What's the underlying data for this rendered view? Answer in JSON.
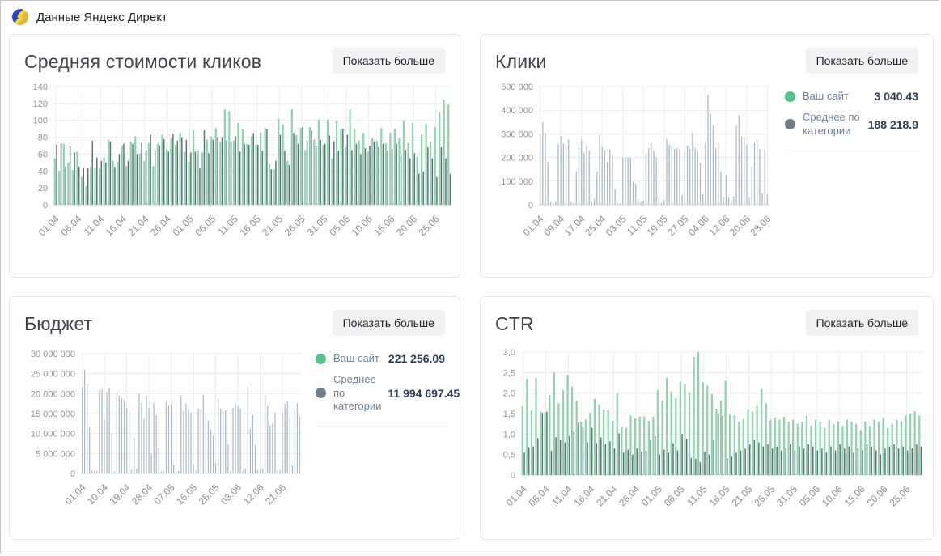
{
  "header": {
    "title": "Данные Яндекс Директ",
    "logo_icon": "yandex-direct-logo"
  },
  "show_more_label": "Показать больше",
  "colors": {
    "green": "#8dd3ae",
    "gray_dark": "#5f6d79",
    "gray_light": "#aebcc6",
    "legend_green_dot": "#55c388",
    "legend_gray_dot": "#6d7d8b",
    "grid": "#e9ebed",
    "axis_text": "#8b939c"
  },
  "chart_data": [
    {
      "type": "bar",
      "title": "Средняя стоимости кликов",
      "date_range": "01.04 – 28.06",
      "n_days": 89,
      "y_max": 140,
      "y_ticks": [
        "140",
        "120",
        "100",
        "80",
        "60",
        "40",
        "20",
        "0"
      ],
      "x_tick_labels": [
        "01.04",
        "06.04",
        "11.04",
        "16.04",
        "21.04",
        "26.04",
        "01.05",
        "06.05",
        "11.05",
        "16.05",
        "21.05",
        "26.05",
        "31.05",
        "05.06",
        "10.06",
        "15.06",
        "20.06",
        "25.06"
      ],
      "x_tick_positions": [
        0,
        5,
        10,
        15,
        20,
        25,
        30,
        35,
        40,
        45,
        50,
        55,
        60,
        65,
        70,
        75,
        80,
        85
      ],
      "series": [
        {
          "name": "Ваш сайт",
          "color_key": "green",
          "values": [
            55,
            40,
            72,
            50,
            41,
            63,
            33,
            22,
            45,
            44,
            43,
            56,
            77,
            52,
            51,
            70,
            46,
            75,
            81,
            61,
            52,
            73,
            46,
            72,
            83,
            66,
            79,
            71,
            85,
            63,
            51,
            88,
            64,
            62,
            77,
            81,
            91,
            75,
            113,
            111,
            76,
            97,
            89,
            72,
            81,
            71,
            86,
            91,
            48,
            42,
            102,
            95,
            52,
            113,
            83,
            91,
            65,
            92,
            77,
            101,
            71,
            101,
            55,
            100,
            89,
            68,
            113,
            90,
            76,
            85,
            63,
            79,
            76,
            91,
            73,
            85,
            90,
            79,
            100,
            73,
            97,
            57,
            83,
            96,
            75,
            92,
            110,
            124,
            119
          ]
        },
        {
          "name": "Среднее по категории",
          "color_key": "gray_dark",
          "values": [
            71,
            73,
            45,
            70,
            62,
            45,
            44,
            43,
            76,
            56,
            52,
            50,
            75,
            45,
            60,
            72,
            52,
            72,
            60,
            73,
            65,
            83,
            65,
            70,
            78,
            63,
            84,
            76,
            80,
            77,
            62,
            63,
            43,
            88,
            61,
            77,
            80,
            80,
            76,
            74,
            81,
            63,
            72,
            71,
            85,
            71,
            64,
            89,
            42,
            52,
            83,
            64,
            47,
            85,
            72,
            92,
            76,
            88,
            70,
            77,
            72,
            82,
            75,
            64,
            90,
            83,
            65,
            72,
            60,
            67,
            70,
            75,
            68,
            72,
            64,
            66,
            72,
            58,
            65,
            55,
            61,
            37,
            39,
            68,
            55,
            33,
            68,
            55,
            37
          ]
        }
      ]
    },
    {
      "type": "bar",
      "title": "Клики",
      "date_range": "01.04 – 28.06",
      "n_days": 89,
      "y_max": 500000,
      "y_ticks": [
        "500 000",
        "400 000",
        "300 000",
        "200 000",
        "100 000",
        "0"
      ],
      "x_tick_labels": [
        "01.04",
        "09.04",
        "17.04",
        "25.04",
        "03.05",
        "11.05",
        "19.05",
        "27.05",
        "04.06",
        "12.06",
        "20.06",
        "28.06"
      ],
      "x_tick_positions": [
        0,
        8,
        16,
        24,
        32,
        40,
        48,
        56,
        64,
        72,
        80,
        88
      ],
      "legend": [
        {
          "label": "Ваш сайт",
          "value": "3 040.43",
          "color": "green"
        },
        {
          "label": "Среднее по категории",
          "value": "188 218.9",
          "color": "gray"
        }
      ],
      "series": [
        {
          "name": "Среднее по категории",
          "color_key": "gray_light",
          "values": [
            300000,
            350000,
            305000,
            180000,
            12000,
            8000,
            15000,
            255000,
            290000,
            260000,
            255000,
            275000,
            15000,
            8000,
            140000,
            240000,
            275000,
            220000,
            250000,
            230000,
            12000,
            25000,
            140000,
            295000,
            245000,
            230000,
            180000,
            235000,
            210000,
            65000,
            8000,
            5000,
            200000,
            200000,
            200000,
            200000,
            95000,
            90000,
            20000,
            12000,
            18000,
            215000,
            240000,
            260000,
            230000,
            200000,
            30000,
            8000,
            20000,
            280000,
            255000,
            250000,
            235000,
            240000,
            235000,
            40000,
            225000,
            250000,
            235000,
            305000,
            240000,
            225000,
            175000,
            45000,
            260000,
            465000,
            385000,
            335000,
            240000,
            260000,
            140000,
            30000,
            125000,
            30000,
            20000,
            35000,
            335000,
            380000,
            290000,
            285000,
            255000,
            30000,
            160000,
            260000,
            280000,
            235000,
            50000,
            235000,
            45000
          ]
        }
      ]
    },
    {
      "type": "bar",
      "title": "Бюджет",
      "date_range": "01.04 – 28.06",
      "n_days": 89,
      "y_max": 30000000,
      "y_ticks": [
        "30 000 000",
        "25 000 000",
        "20 000 000",
        "15 000 000",
        "10 000 000",
        "5 000 000",
        "0"
      ],
      "x_tick_labels": [
        "01.04",
        "10.04",
        "19.04",
        "28.04",
        "07.05",
        "16.05",
        "25.05",
        "03.06",
        "12.06",
        "21.06"
      ],
      "x_tick_positions": [
        0,
        9,
        18,
        27,
        36,
        45,
        54,
        63,
        72,
        81
      ],
      "legend": [
        {
          "label": "Ваш сайт",
          "value": "221 256.09",
          "color": "green"
        },
        {
          "label": "Среднее по категории",
          "value": "11 994 697.45",
          "color": "gray"
        }
      ],
      "series": [
        {
          "name": "Среднее по категории",
          "color_key": "gray_light",
          "values": [
            21500000,
            26000000,
            22500000,
            11500000,
            800000,
            600000,
            700000,
            20800000,
            21000000,
            13500000,
            20500000,
            21500000,
            10000000,
            500000,
            20000000,
            19500000,
            18700000,
            18500000,
            16500000,
            15300000,
            900000,
            9000000,
            1200000,
            20000000,
            17700000,
            13800000,
            19500000,
            16500000,
            4800000,
            17600000,
            14600000,
            6400000,
            500000,
            600000,
            17900000,
            17000000,
            17300000,
            2200000,
            500000,
            600000,
            19500000,
            15500000,
            17500000,
            16200000,
            15300000,
            2300000,
            700000,
            16200000,
            16100000,
            19600000,
            14800000,
            13300000,
            11000000,
            9500000,
            2600000,
            18700000,
            16300000,
            15600000,
            15900000,
            7400000,
            600000,
            16300000,
            17400000,
            16800000,
            16300000,
            700000,
            1200000,
            21700000,
            11200000,
            14600000,
            7200000,
            800000,
            1000000,
            1200000,
            19700000,
            16900000,
            12100000,
            12500000,
            15300000,
            800000,
            900000,
            15200000,
            17500000,
            18000000,
            14200000,
            2000000,
            16000000,
            17600000,
            14200000
          ]
        }
      ]
    },
    {
      "type": "bar",
      "title": "CTR",
      "date_range": "01.04 – 28.06",
      "n_days": 89,
      "y_max": 3,
      "y_ticks": [
        "3,0",
        "2,5",
        "2,0",
        "1,5",
        "1,0",
        "0,5",
        "0"
      ],
      "x_tick_labels": [
        "01.04",
        "06.04",
        "11.04",
        "16.04",
        "21.04",
        "26.04",
        "01.05",
        "06.05",
        "11.05",
        "16.05",
        "21.05",
        "26.05",
        "31.05",
        "05.06",
        "10.06",
        "15.06",
        "20.06",
        "25.06"
      ],
      "x_tick_positions": [
        0,
        5,
        10,
        15,
        20,
        25,
        30,
        35,
        40,
        45,
        50,
        55,
        60,
        65,
        70,
        75,
        80,
        85
      ],
      "series": [
        {
          "name": "Ваш сайт",
          "color_key": "green",
          "values": [
            1.68,
            2.35,
            1.58,
            2.37,
            1.55,
            1.53,
            1.95,
            2.5,
            1.75,
            2.07,
            2.45,
            2.16,
            1.82,
            1.3,
            1.35,
            1.52,
            1.86,
            1.72,
            1.6,
            1.58,
            1.32,
            2.0,
            1.18,
            1.15,
            1.45,
            1.38,
            1.43,
            1.43,
            1.32,
            1.42,
            2.07,
            1.82,
            2.37,
            2.04,
            1.88,
            2.28,
            2.23,
            2.03,
            2.88,
            3.0,
            2.26,
            2.18,
            1.98,
            1.62,
            1.82,
            2.3,
            1.47,
            1.46,
            1.3,
            1.37,
            1.6,
            1.55,
            1.68,
            2.1,
            1.75,
            1.35,
            1.4,
            1.35,
            1.42,
            1.3,
            1.35,
            1.25,
            1.3,
            1.45,
            1.2,
            1.35,
            1.3,
            1.15,
            1.35,
            1.25,
            1.3,
            1.2,
            1.35,
            1.3,
            1.25,
            1.1,
            1.3,
            1.2,
            1.35,
            1.3,
            1.4,
            1.15,
            1.25,
            1.35,
            1.3,
            1.45,
            1.5,
            1.55,
            1.45
          ]
        },
        {
          "name": "Среднее по категории",
          "color_key": "gray_dark",
          "values": [
            0.55,
            0.68,
            0.7,
            0.9,
            1.52,
            1.55,
            0.6,
            0.92,
            0.85,
            0.8,
            0.95,
            1.05,
            1.28,
            1.16,
            0.8,
            1.15,
            0.78,
            0.92,
            0.75,
            0.82,
            0.65,
            1.02,
            0.55,
            0.62,
            0.5,
            0.65,
            0.57,
            0.6,
            0.85,
            0.95,
            0.5,
            0.62,
            0.55,
            0.78,
            0.6,
            1.0,
            0.88,
            0.42,
            0.4,
            0.32,
            0.57,
            0.5,
            0.85,
            1.5,
            1.45,
            0.4,
            0.45,
            0.55,
            0.6,
            0.65,
            0.75,
            0.85,
            0.8,
            0.7,
            0.75,
            0.65,
            0.7,
            0.6,
            0.65,
            0.75,
            0.6,
            0.7,
            0.65,
            0.75,
            0.7,
            0.6,
            0.65,
            0.55,
            0.7,
            0.6,
            0.75,
            0.65,
            0.7,
            0.55,
            0.65,
            0.6,
            0.75,
            0.7,
            0.6,
            0.5,
            0.65,
            0.7,
            0.75,
            0.65,
            0.7,
            0.6,
            0.65,
            0.75,
            0.7
          ]
        }
      ]
    }
  ]
}
